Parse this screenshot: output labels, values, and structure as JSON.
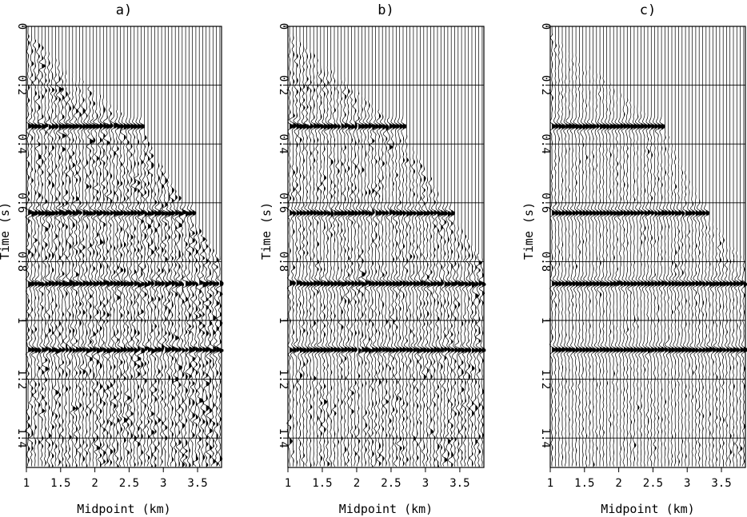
{
  "chart_data": [
    {
      "type": "wiggle",
      "title": "a)",
      "xlabel": "Midpoint (km)",
      "ylabel": "Time (s)",
      "xlim": [
        1,
        3.85
      ],
      "ylim": [
        0,
        1.5
      ],
      "y_inverted": true,
      "x_ticks": [
        "1",
        "1.5",
        "2",
        "2.5",
        "3",
        "3.5"
      ],
      "y_ticks": [
        "0",
        "0.2",
        "0.4",
        "0.6",
        "0.8",
        "1",
        "1.2",
        "1.4"
      ],
      "trace_spacing_km": 0.05,
      "grid": true,
      "noise_level": 1.0,
      "noise_cutoff": [
        {
          "x": 1.0,
          "t": 0.02
        },
        {
          "x": 2.7,
          "t": 0.36
        },
        {
          "x": 3.4,
          "t": 0.65
        },
        {
          "x": 3.85,
          "t": 0.8
        }
      ],
      "events": [
        {
          "t": 0.34,
          "x_end": 2.72,
          "amplitude": 1.0
        },
        {
          "t": 0.635,
          "x_end": 3.45,
          "amplitude": 1.0
        },
        {
          "t": 0.875,
          "x_end": 3.85,
          "amplitude": 1.0
        },
        {
          "t": 1.1,
          "x_end": 3.85,
          "amplitude": 1.0
        }
      ]
    },
    {
      "type": "wiggle",
      "title": "b)",
      "xlabel": "Midpoint (km)",
      "ylabel": "Time (s)",
      "xlim": [
        1,
        3.85
      ],
      "ylim": [
        0,
        1.5
      ],
      "y_inverted": true,
      "x_ticks": [
        "1",
        "1.5",
        "2",
        "2.5",
        "3",
        "3.5"
      ],
      "y_ticks": [
        "0",
        "0.2",
        "0.4",
        "0.6",
        "0.8",
        "1",
        "1.2",
        "1.4"
      ],
      "trace_spacing_km": 0.05,
      "grid": true,
      "noise_level": 0.7,
      "noise_cutoff": [
        {
          "x": 1.0,
          "t": 0.02
        },
        {
          "x": 2.7,
          "t": 0.36
        },
        {
          "x": 3.4,
          "t": 0.65
        },
        {
          "x": 3.85,
          "t": 0.8
        }
      ],
      "events": [
        {
          "t": 0.34,
          "x_end": 2.72,
          "amplitude": 1.0
        },
        {
          "t": 0.635,
          "x_end": 3.42,
          "amplitude": 1.0
        },
        {
          "t": 0.875,
          "x_end": 3.85,
          "amplitude": 1.0
        },
        {
          "t": 1.1,
          "x_end": 3.85,
          "amplitude": 1.0
        }
      ]
    },
    {
      "type": "wiggle",
      "title": "c)",
      "xlabel": "Midpoint (km)",
      "ylabel": "Time (s)",
      "xlim": [
        1,
        3.85
      ],
      "ylim": [
        0,
        1.5
      ],
      "y_inverted": true,
      "x_ticks": [
        "1",
        "1.5",
        "2",
        "2.5",
        "3",
        "3.5"
      ],
      "y_ticks": [
        "0",
        "0.2",
        "0.4",
        "0.6",
        "0.8",
        "1",
        "1.2",
        "1.4"
      ],
      "trace_spacing_km": 0.05,
      "grid": true,
      "noise_level": 0.4,
      "noise_cutoff": [
        {
          "x": 1.0,
          "t": 0.02
        },
        {
          "x": 2.7,
          "t": 0.36
        },
        {
          "x": 3.3,
          "t": 0.65
        },
        {
          "x": 3.85,
          "t": 0.8
        }
      ],
      "events": [
        {
          "t": 0.34,
          "x_end": 2.65,
          "amplitude": 1.0
        },
        {
          "t": 0.635,
          "x_end": 3.3,
          "amplitude": 1.0
        },
        {
          "t": 0.875,
          "x_end": 3.85,
          "amplitude": 1.0
        },
        {
          "t": 1.1,
          "x_end": 3.85,
          "amplitude": 1.0
        }
      ]
    }
  ]
}
